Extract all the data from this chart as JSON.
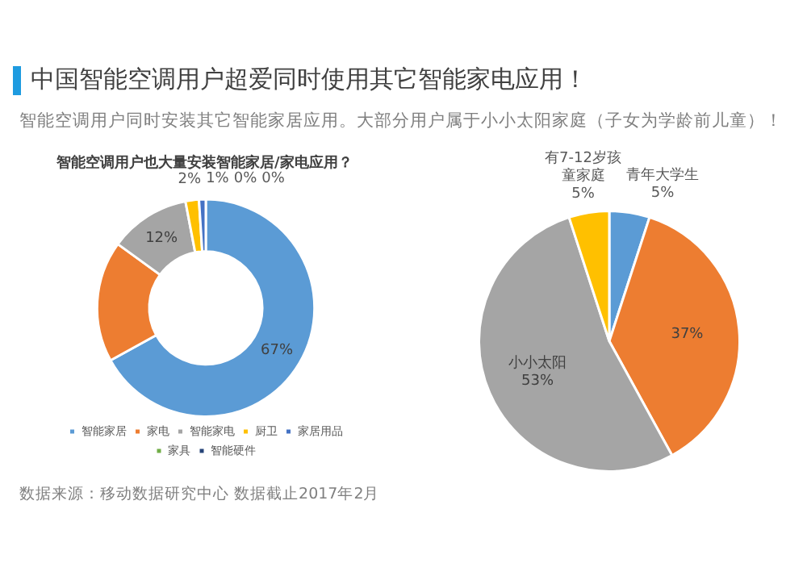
{
  "chart_data": [
    {
      "type": "other",
      "title": "中国智能空调用户超爱同时使用其它智能家电应用！",
      "subtitle": "智能空调用户同时安装其它智能家居应用。大部分用户属于小小太阳家庭（子女为学龄前儿童）！",
      "annotations": [
        "数据来源：移动数据研究中心   数据截止2017年2月"
      ]
    },
    {
      "type": "donut",
      "title": "智能空调用户也大量安装智能家居/家电应用？",
      "categories": [
        "智能家居",
        "家电",
        "智能家电",
        "厨卫",
        "家居用品",
        "家具",
        "智能硬件"
      ],
      "values": [
        67,
        18,
        12,
        2,
        1,
        0,
        0
      ],
      "colors": [
        "#5b9bd5",
        "#ed7d31",
        "#a5a5a5",
        "#ffc000",
        "#4472c4",
        "#70ad47",
        "#264478"
      ],
      "value_labels": [
        "67%",
        null,
        "12%",
        "2%",
        "1%",
        "0%",
        "0%"
      ],
      "legend": "bottom"
    },
    {
      "type": "pie",
      "categories": [
        "青年大学生",
        null,
        "小小太阳",
        "有7-12岁孩童家庭"
      ],
      "values": [
        5,
        37,
        53,
        5
      ],
      "colors": [
        "#5b9bd5",
        "#ed7d31",
        "#a5a5a5",
        "#ffc000"
      ],
      "value_labels": [
        "5%",
        "37%",
        "53%",
        "5%"
      ],
      "legend": false
    }
  ]
}
